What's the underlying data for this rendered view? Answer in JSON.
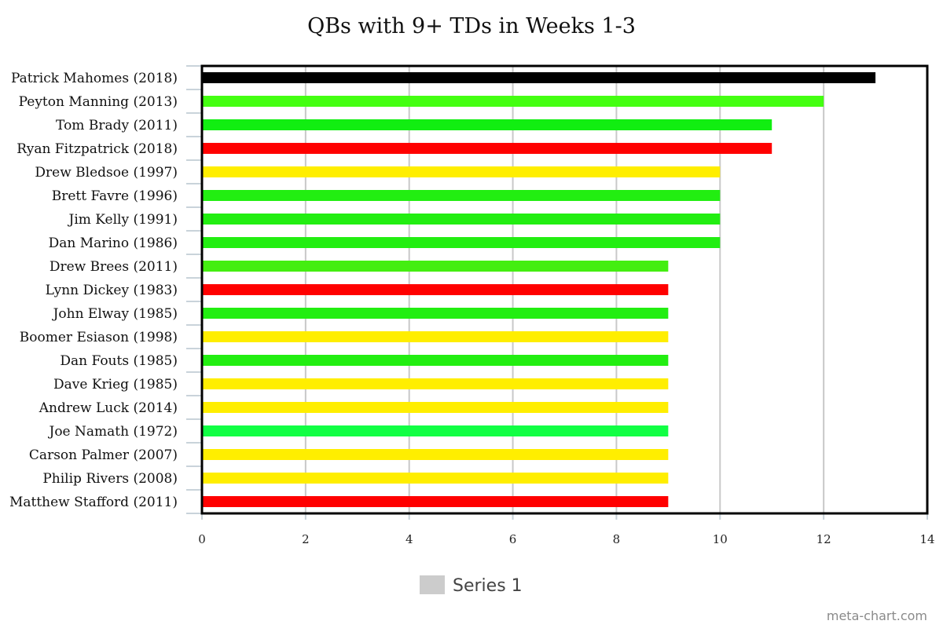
{
  "chart_data": {
    "type": "bar",
    "orientation": "horizontal",
    "title": "QBs with 9+ TDs in Weeks 1-3",
    "xlabel": "",
    "ylabel": "",
    "xlim": [
      0,
      14
    ],
    "x_ticks": [
      0,
      2,
      4,
      6,
      8,
      10,
      12,
      14
    ],
    "grid": "vertical",
    "legend": {
      "placement": "bottom-center",
      "entries": [
        "Series 1"
      ],
      "color": "#cccccc"
    },
    "categories": [
      "Patrick Mahomes (2018)",
      "Peyton Manning (2013)",
      "Tom Brady (2011)",
      "Ryan Fitzpatrick (2018)",
      "Drew Bledsoe (1997)",
      "Brett Favre (1996)",
      "Jim Kelly (1991)",
      "Dan Marino (1986)",
      "Drew Brees (2011)",
      "Lynn Dickey (1983)",
      "John Elway (1985)",
      "Boomer Esiason (1998)",
      "Dan Fouts (1985)",
      "Dave Krieg (1985)",
      "Andrew Luck (2014)",
      "Joe Namath (1972)",
      "Carson Palmer (2007)",
      "Philip Rivers (2008)",
      "Matthew Stafford (2011)"
    ],
    "series": [
      {
        "name": "Series 1",
        "values": [
          13,
          12,
          11,
          11,
          10,
          10,
          10,
          10,
          9,
          9,
          9,
          9,
          9,
          9,
          9,
          9,
          9,
          9,
          9
        ],
        "colors": [
          "#000000",
          "#44ff11",
          "#11ee11",
          "#ff0000",
          "#ffee00",
          "#22ee11",
          "#22ee11",
          "#22ee11",
          "#44ee11",
          "#ff0000",
          "#22ee11",
          "#ffee00",
          "#22ee11",
          "#ffee00",
          "#ffee00",
          "#11ff44",
          "#ffee00",
          "#ffee00",
          "#ff0000"
        ]
      }
    ]
  },
  "watermark": "meta-chart.com"
}
